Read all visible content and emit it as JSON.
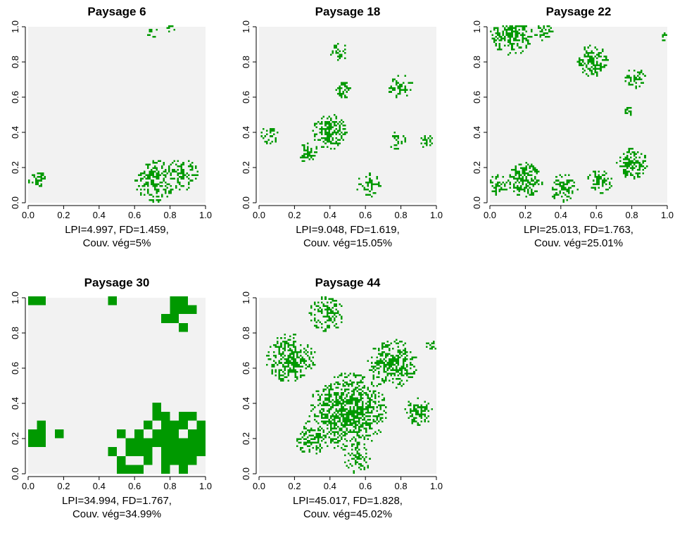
{
  "colors": {
    "background": "#f2f2f2",
    "vegetation": "#009900",
    "axis": "#000000"
  },
  "chart_data": [
    {
      "type": "heatmap",
      "title": "Paysage 6",
      "caption_line1": "LPI=4.997, FD=1.459,",
      "caption_line2": "Couv. vég=5%",
      "xlim": [
        0,
        1
      ],
      "ylim": [
        0,
        1
      ],
      "x_ticks": [
        "0.0",
        "0.2",
        "0.4",
        "0.6",
        "0.8",
        "1.0"
      ],
      "y_ticks": [
        "0.0",
        "0.2",
        "0.4",
        "0.6",
        "0.8",
        "1.0"
      ],
      "patches": [
        {
          "x": 0.05,
          "y": 0.13,
          "r": 0.05,
          "density": 0.7
        },
        {
          "x": 0.72,
          "y": 0.12,
          "r": 0.12,
          "density": 0.6
        },
        {
          "x": 0.87,
          "y": 0.16,
          "r": 0.09,
          "density": 0.5
        },
        {
          "x": 0.7,
          "y": 0.97,
          "r": 0.04,
          "density": 0.5
        },
        {
          "x": 0.8,
          "y": 0.99,
          "r": 0.03,
          "density": 0.3
        }
      ]
    },
    {
      "type": "heatmap",
      "title": "Paysage 18",
      "caption_line1": "LPI=9.048, FD=1.619,",
      "caption_line2": "Couv. vég=15.05%",
      "xlim": [
        0,
        1
      ],
      "ylim": [
        0,
        1
      ],
      "x_ticks": [
        "0.0",
        "0.2",
        "0.4",
        "0.6",
        "0.8",
        "1.0"
      ],
      "y_ticks": [
        "0.0",
        "0.2",
        "0.4",
        "0.6",
        "0.8",
        "1.0"
      ],
      "patches": [
        {
          "x": 0.4,
          "y": 0.4,
          "r": 0.1,
          "density": 0.7
        },
        {
          "x": 0.28,
          "y": 0.28,
          "r": 0.06,
          "density": 0.6
        },
        {
          "x": 0.48,
          "y": 0.63,
          "r": 0.05,
          "density": 0.5
        },
        {
          "x": 0.45,
          "y": 0.85,
          "r": 0.05,
          "density": 0.5
        },
        {
          "x": 0.06,
          "y": 0.38,
          "r": 0.05,
          "density": 0.6
        },
        {
          "x": 0.62,
          "y": 0.1,
          "r": 0.07,
          "density": 0.45
        },
        {
          "x": 0.8,
          "y": 0.65,
          "r": 0.07,
          "density": 0.5
        },
        {
          "x": 0.78,
          "y": 0.35,
          "r": 0.05,
          "density": 0.5
        },
        {
          "x": 0.94,
          "y": 0.35,
          "r": 0.04,
          "density": 0.5
        }
      ]
    },
    {
      "type": "heatmap",
      "title": "Paysage 22",
      "caption_line1": "LPI=25.013, FD=1.763,",
      "caption_line2": "Couv. vég=25.01%",
      "xlim": [
        0,
        1
      ],
      "ylim": [
        0,
        1
      ],
      "x_ticks": [
        "0.0",
        "0.2",
        "0.4",
        "0.6",
        "0.8",
        "1.0"
      ],
      "y_ticks": [
        "0.0",
        "0.2",
        "0.4",
        "0.6",
        "0.8",
        "1.0"
      ],
      "patches": [
        {
          "x": 0.12,
          "y": 0.95,
          "r": 0.12,
          "density": 0.65
        },
        {
          "x": 0.3,
          "y": 0.97,
          "r": 0.06,
          "density": 0.5
        },
        {
          "x": 0.58,
          "y": 0.8,
          "r": 0.09,
          "density": 0.65
        },
        {
          "x": 0.82,
          "y": 0.7,
          "r": 0.06,
          "density": 0.55
        },
        {
          "x": 0.78,
          "y": 0.52,
          "r": 0.03,
          "density": 0.5
        },
        {
          "x": 0.98,
          "y": 0.93,
          "r": 0.03,
          "density": 0.6
        },
        {
          "x": 0.2,
          "y": 0.13,
          "r": 0.1,
          "density": 0.7
        },
        {
          "x": 0.05,
          "y": 0.1,
          "r": 0.06,
          "density": 0.6
        },
        {
          "x": 0.42,
          "y": 0.08,
          "r": 0.08,
          "density": 0.6
        },
        {
          "x": 0.62,
          "y": 0.12,
          "r": 0.07,
          "density": 0.55
        },
        {
          "x": 0.8,
          "y": 0.22,
          "r": 0.09,
          "density": 0.65
        }
      ]
    },
    {
      "type": "heatmap",
      "title": "Paysage 30",
      "caption_line1": "LPI=34.994, FD=1.767,",
      "caption_line2": "Couv. vég=34.99%",
      "xlim": [
        0,
        1
      ],
      "ylim": [
        0,
        1
      ],
      "x_ticks": [
        "0.0",
        "0.2",
        "0.4",
        "0.6",
        "0.8",
        "1.0"
      ],
      "y_ticks": [
        "0.0",
        "0.2",
        "0.4",
        "0.6",
        "0.8",
        "1.0"
      ],
      "patches": [
        {
          "x": 0.8,
          "y": 0.2,
          "r": 0.22,
          "density": 0.9
        },
        {
          "x": 0.6,
          "y": 0.13,
          "r": 0.14,
          "density": 0.9
        },
        {
          "x": 0.08,
          "y": 0.2,
          "r": 0.1,
          "density": 0.85
        },
        {
          "x": 0.85,
          "y": 0.9,
          "r": 0.1,
          "density": 0.85
        },
        {
          "x": 0.05,
          "y": 0.98,
          "r": 0.04,
          "density": 0.8
        },
        {
          "x": 0.48,
          "y": 0.98,
          "r": 0.02,
          "density": 0.8
        }
      ]
    },
    {
      "type": "heatmap",
      "title": "Paysage 44",
      "caption_line1": "LPI=45.017, FD=1.828,",
      "caption_line2": "Couv. vég=45.02%",
      "xlim": [
        0,
        1
      ],
      "ylim": [
        0,
        1
      ],
      "x_ticks": [
        "0.0",
        "0.2",
        "0.4",
        "0.6",
        "0.8",
        "1.0"
      ],
      "y_ticks": [
        "0.0",
        "0.2",
        "0.4",
        "0.6",
        "0.8",
        "1.0"
      ],
      "patches": [
        {
          "x": 0.5,
          "y": 0.35,
          "r": 0.22,
          "density": 0.75
        },
        {
          "x": 0.18,
          "y": 0.65,
          "r": 0.14,
          "density": 0.65
        },
        {
          "x": 0.38,
          "y": 0.9,
          "r": 0.1,
          "density": 0.6
        },
        {
          "x": 0.75,
          "y": 0.62,
          "r": 0.14,
          "density": 0.65
        },
        {
          "x": 0.9,
          "y": 0.35,
          "r": 0.08,
          "density": 0.6
        },
        {
          "x": 0.3,
          "y": 0.2,
          "r": 0.1,
          "density": 0.6
        },
        {
          "x": 0.55,
          "y": 0.08,
          "r": 0.08,
          "density": 0.55
        },
        {
          "x": 0.97,
          "y": 0.72,
          "r": 0.04,
          "density": 0.5
        }
      ]
    }
  ]
}
